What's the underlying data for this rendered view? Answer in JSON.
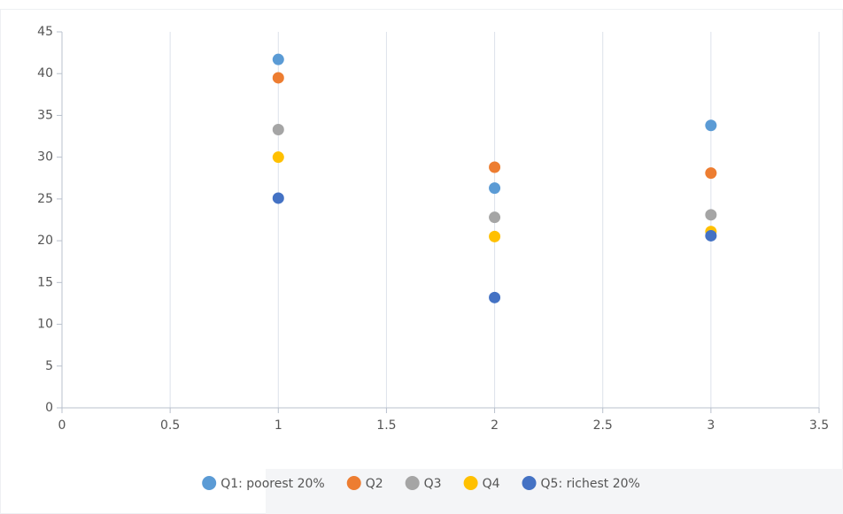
{
  "chart_data": {
    "type": "scatter",
    "xlim": [
      0,
      3.5
    ],
    "xticks": [
      0,
      0.5,
      1,
      1.5,
      2,
      2.5,
      3,
      3.5
    ],
    "ylim": [
      0,
      45
    ],
    "yticks": [
      0,
      5,
      10,
      15,
      20,
      25,
      30,
      35,
      40,
      45
    ],
    "grid": true,
    "legend": "bottom",
    "series": [
      {
        "name": "Q1: poorest 20%",
        "color": "#5b9bd5",
        "x": [
          1,
          2,
          3
        ],
        "values": [
          41.7,
          26.3,
          33.8
        ]
      },
      {
        "name": "Q2",
        "color": "#ed7d31",
        "x": [
          1,
          2,
          3
        ],
        "values": [
          39.5,
          28.8,
          28.1
        ]
      },
      {
        "name": "Q3",
        "color": "#a5a5a5",
        "x": [
          1,
          2,
          3
        ],
        "values": [
          33.3,
          22.8,
          23.1
        ]
      },
      {
        "name": "Q4",
        "color": "#ffc000",
        "x": [
          1,
          2,
          3
        ],
        "values": [
          30.0,
          20.5,
          21.1
        ]
      },
      {
        "name": "Q5: richest 20%",
        "color": "#4472c4",
        "x": [
          1,
          2,
          3
        ],
        "values": [
          25.1,
          13.2,
          20.6
        ]
      }
    ]
  }
}
